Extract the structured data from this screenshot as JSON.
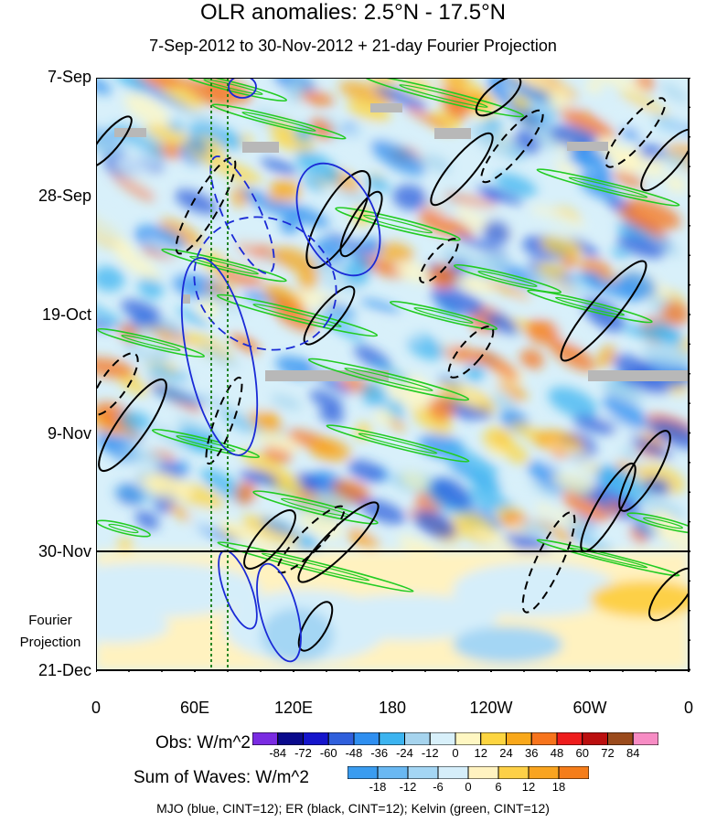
{
  "chart_data": {
    "type": "heatmap",
    "title": "OLR anomalies: 2.5°N - 17.5°N",
    "subtitle": "7-Sep-2012 to 30-Nov-2012 + 21-day Fourier Projection",
    "xlabel": "",
    "ylabel": "",
    "x_ticks": [
      "0",
      "60E",
      "120E",
      "180",
      "120W",
      "60W",
      "0"
    ],
    "x_tick_values": [
      0,
      60,
      120,
      180,
      240,
      300,
      360
    ],
    "y_ticks": [
      "7-Sep",
      "28-Sep",
      "19-Oct",
      "9-Nov",
      "30-Nov",
      "21-Dec"
    ],
    "y_range": [
      "7-Sep-2012",
      "21-Dec-2012"
    ],
    "projection_label_lines": [
      "Fourier",
      "Projection"
    ],
    "observation_end": "30-Nov",
    "obs_colorbar": {
      "title": "Obs: W/m^2",
      "levels": [
        -84,
        -72,
        -60,
        -48,
        -36,
        -24,
        -12,
        0,
        12,
        24,
        36,
        48,
        60,
        72,
        84
      ],
      "labels": [
        "-84",
        "-72",
        "-60",
        "-48",
        "-36",
        "-24",
        "-12",
        "0",
        "12",
        "24",
        "36",
        "48",
        "60",
        "72",
        "84"
      ],
      "colors": [
        "#7a2be2",
        "#0a0a8c",
        "#1515cc",
        "#2f5fdc",
        "#2f8ff0",
        "#3cb4f0",
        "#a6d4ee",
        "#d8f0fa",
        "#fff7c2",
        "#fdd540",
        "#f9a81a",
        "#f7741c",
        "#ee1c1c",
        "#bb0f0f",
        "#9b4b1c",
        "#f78cc4"
      ]
    },
    "waves_colorbar": {
      "title": "Sum of Waves: W/m^2",
      "levels": [
        -18,
        -12,
        -6,
        0,
        6,
        12,
        18
      ],
      "labels": [
        "-18",
        "-12",
        "-6",
        "0",
        "6",
        "12",
        "18"
      ],
      "colors": [
        "#3a9cf0",
        "#69b8f2",
        "#a4d6f4",
        "#d5eefa",
        "#fff2c0",
        "#fdd047",
        "#f9a420",
        "#f57d1a"
      ]
    },
    "series": [
      {
        "name": "MJO",
        "color": "blue",
        "contour_interval": 12
      },
      {
        "name": "ER",
        "color": "black",
        "contour_interval": 12
      },
      {
        "name": "Kelvin",
        "color": "green",
        "contour_interval": 12
      }
    ],
    "footer": "MJO (blue, CINT=12); ER (black, CINT=12); Kelvin (green, CINT=12)",
    "reference_lines_lon": [
      70,
      80
    ]
  },
  "colors": {
    "mjo": "#1a2ad6",
    "er": "#000000",
    "kelvin": "#22cc22",
    "ref_line": "#117a11",
    "missing": "#b8b8b8"
  }
}
